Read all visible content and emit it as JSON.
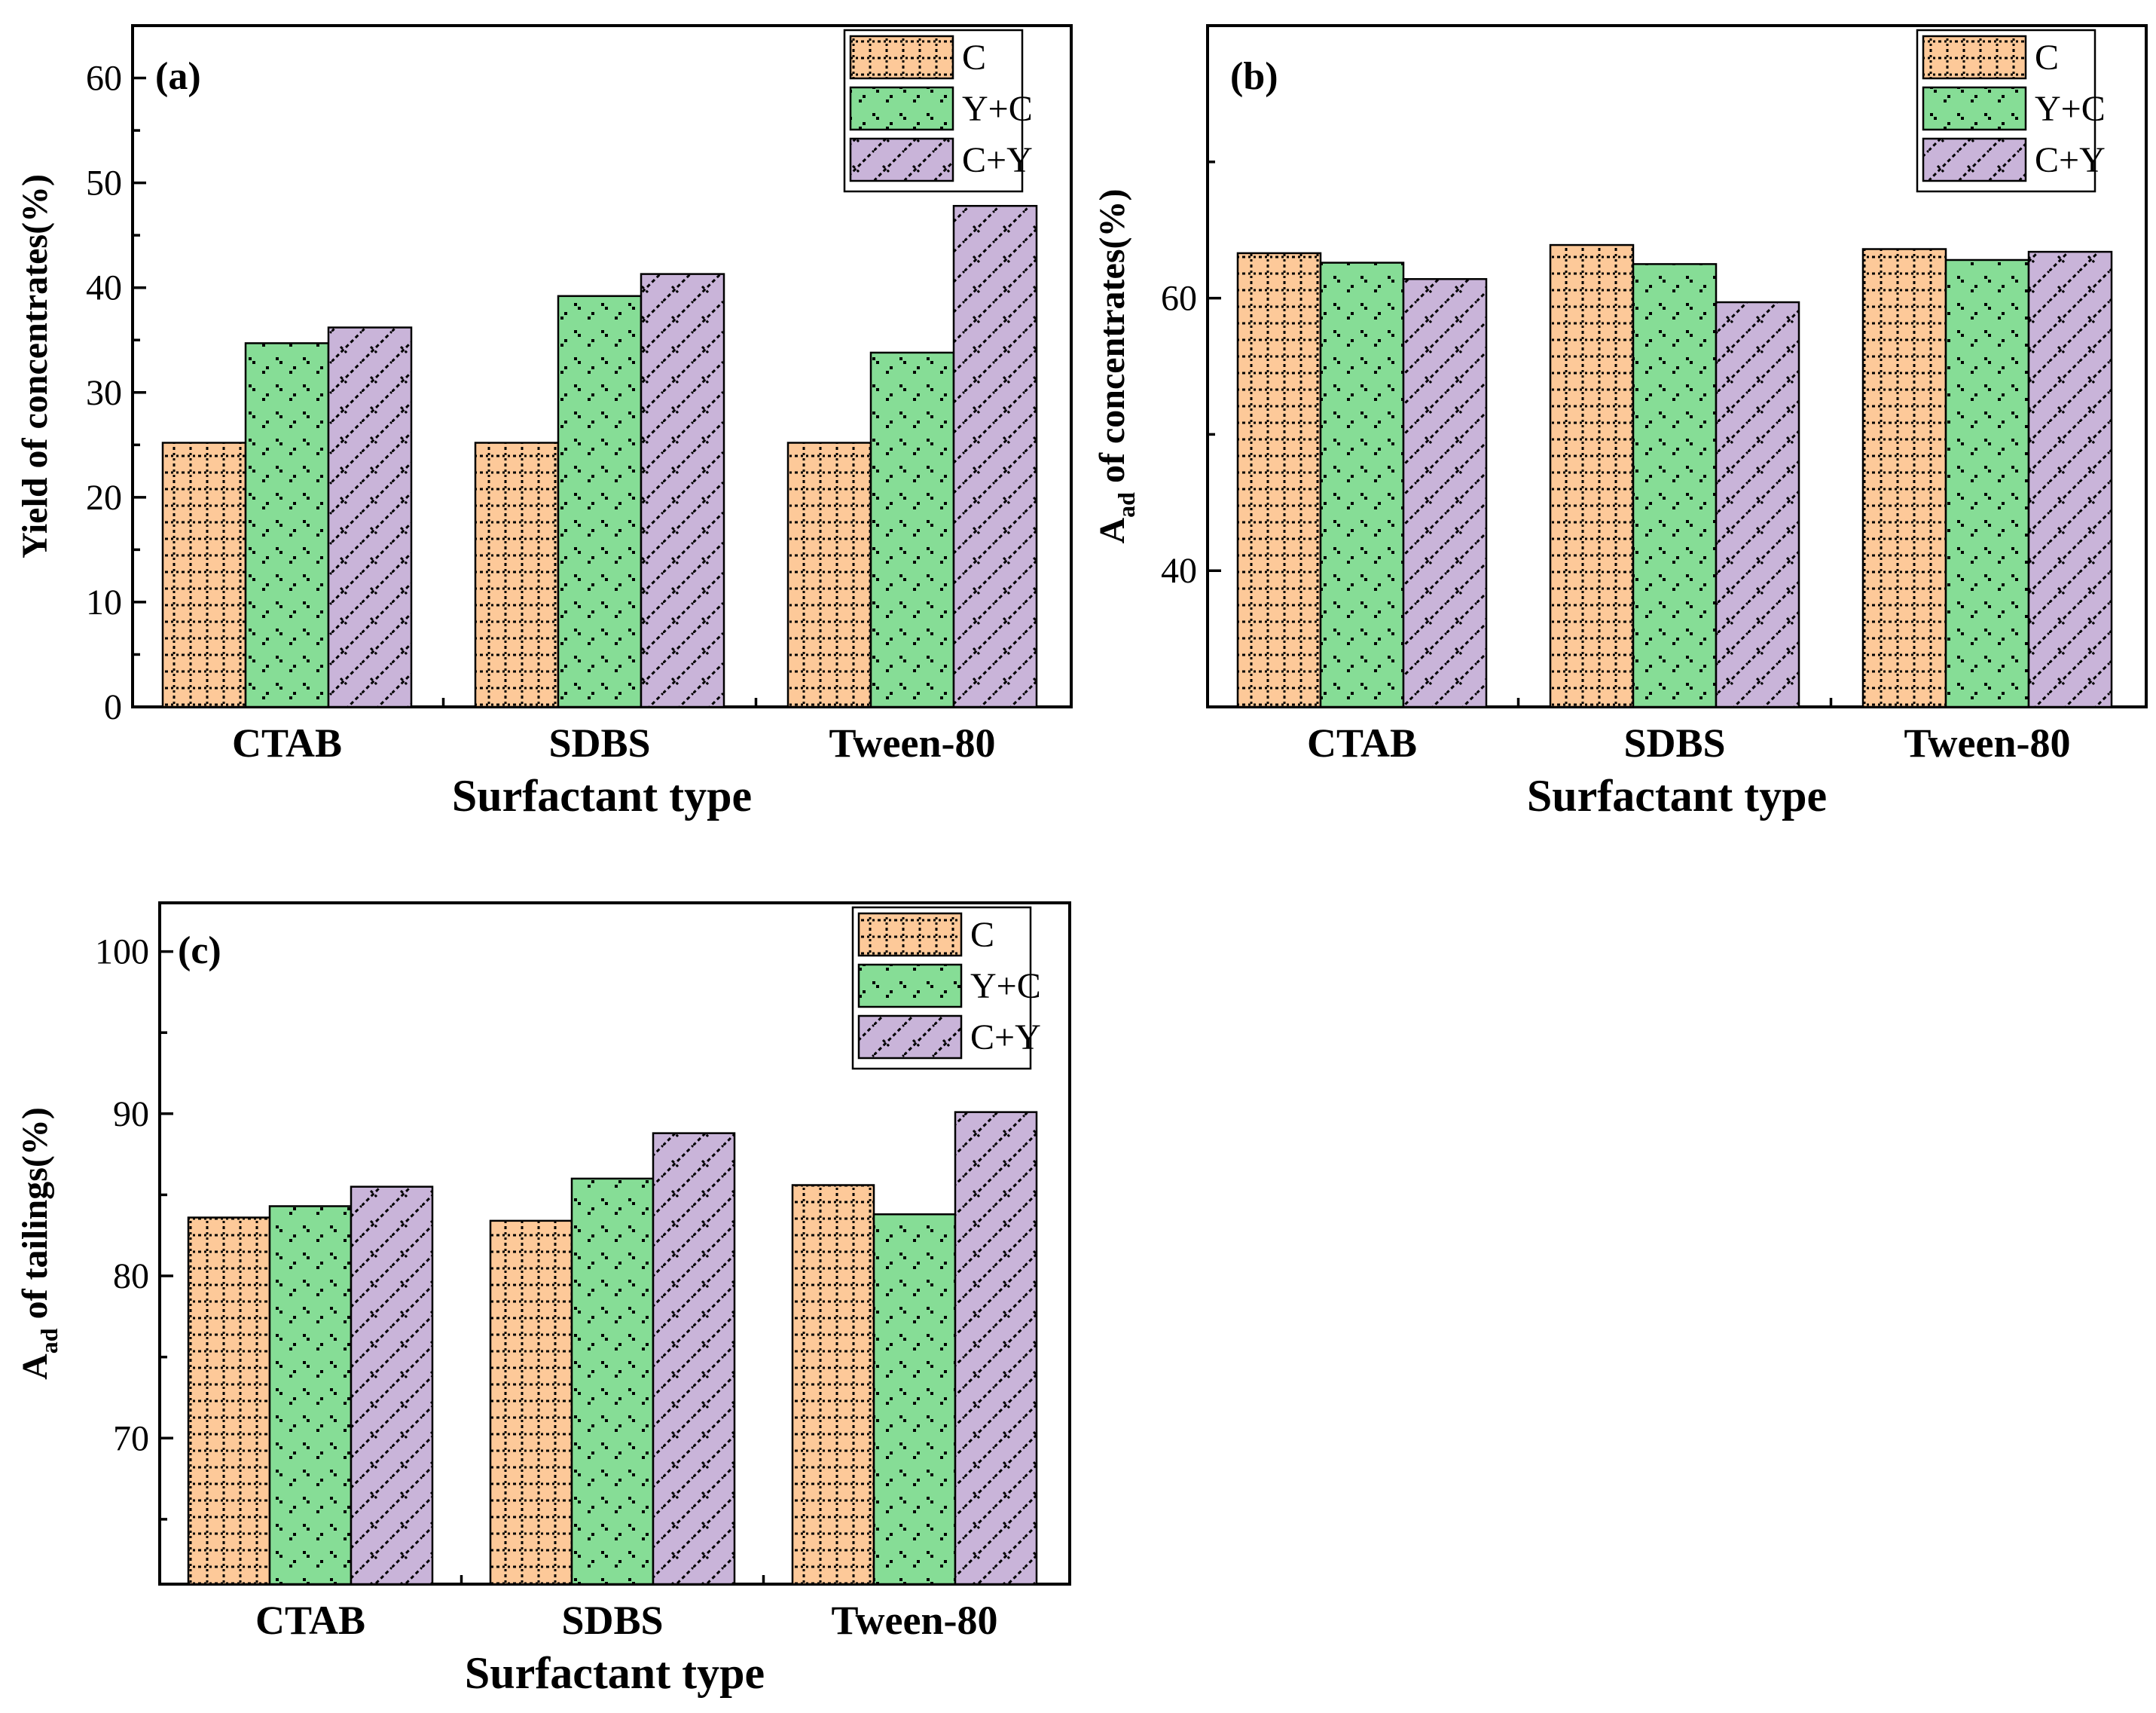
{
  "colors": {
    "C": "#fdc999",
    "Y+C": "#86dd96",
    "C+Y": "#c9b4d9"
  },
  "chart_data": [
    {
      "panel": "(a)",
      "type": "bar",
      "categories": [
        "CTAB",
        "SDBS",
        "Tween-80"
      ],
      "series": [
        {
          "name": "C",
          "values": [
            25.2,
            25.2,
            25.2
          ]
        },
        {
          "name": "Y+C",
          "values": [
            34.7,
            39.2,
            33.8
          ]
        },
        {
          "name": "C+Y",
          "values": [
            36.2,
            41.3,
            47.8
          ]
        }
      ],
      "xlabel": "Surfactant type",
      "ylabel": "Yield of concentrates(%)",
      "ylim": [
        0,
        65
      ],
      "yticks": [
        0,
        10,
        20,
        30,
        40,
        50,
        60
      ],
      "legend": "top-right"
    },
    {
      "panel": "(b)",
      "type": "bar",
      "categories": [
        "CTAB",
        "SDBS",
        "Tween-80"
      ],
      "series": [
        {
          "name": "C",
          "values": [
            63.3,
            63.9,
            63.6
          ]
        },
        {
          "name": "Y+C",
          "values": [
            62.6,
            62.5,
            62.8
          ]
        },
        {
          "name": "C+Y",
          "values": [
            61.4,
            59.7,
            63.4
          ]
        }
      ],
      "xlabel": "Surfactant type",
      "ylabel_main": "A",
      "ylabel_sub": "ad",
      "ylabel_rest": " of concentrates(%)",
      "ylim": [
        30,
        80
      ],
      "yticks": [
        40,
        60
      ],
      "legend": "top-right"
    },
    {
      "panel": "(c)",
      "type": "bar",
      "categories": [
        "CTAB",
        "SDBS",
        "Tween-80"
      ],
      "series": [
        {
          "name": "C",
          "values": [
            83.6,
            83.4,
            85.6
          ]
        },
        {
          "name": "Y+C",
          "values": [
            84.3,
            86.0,
            83.8
          ]
        },
        {
          "name": "C+Y",
          "values": [
            85.5,
            88.8,
            90.1
          ]
        }
      ],
      "xlabel": "Surfactant type",
      "ylabel_main": "A",
      "ylabel_sub": "ad",
      "ylabel_rest": " of tailings(%)",
      "ylim": [
        61,
        103
      ],
      "yticks": [
        70,
        80,
        90,
        100
      ],
      "legend": "top-right"
    }
  ]
}
